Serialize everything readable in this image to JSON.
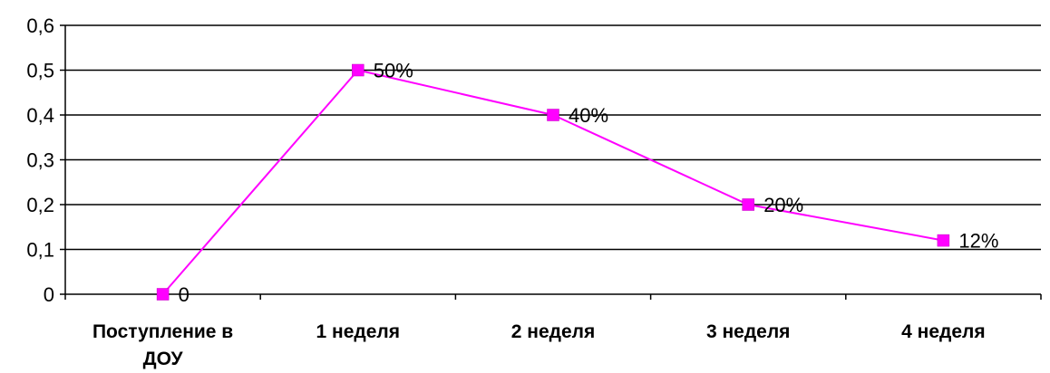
{
  "chart_data": {
    "type": "line",
    "categories": [
      "Поступление в ДОУ",
      "1 неделя",
      "2 неделя",
      "3 неделя",
      "4 неделя"
    ],
    "category_lines": [
      [
        "Поступление в",
        "ДОУ"
      ],
      [
        "1 неделя"
      ],
      [
        "2 неделя"
      ],
      [
        "3 неделя"
      ],
      [
        "4 неделя"
      ]
    ],
    "series": [
      {
        "values": [
          0,
          0.5,
          0.4,
          0.2,
          0.12
        ],
        "data_labels": [
          "0",
          "50%",
          "40%",
          "20%",
          "12%"
        ]
      }
    ],
    "y_ticks": [
      "0",
      "0,1",
      "0,2",
      "0,3",
      "0,4",
      "0,5",
      "0,6"
    ],
    "ylim": [
      0,
      0.6
    ],
    "grid": "horizontal",
    "legend": "none",
    "title": "",
    "xlabel": "",
    "ylabel": ""
  },
  "colors": {
    "series": "#ff00ff",
    "grid": "#000000",
    "text": "#000000"
  }
}
